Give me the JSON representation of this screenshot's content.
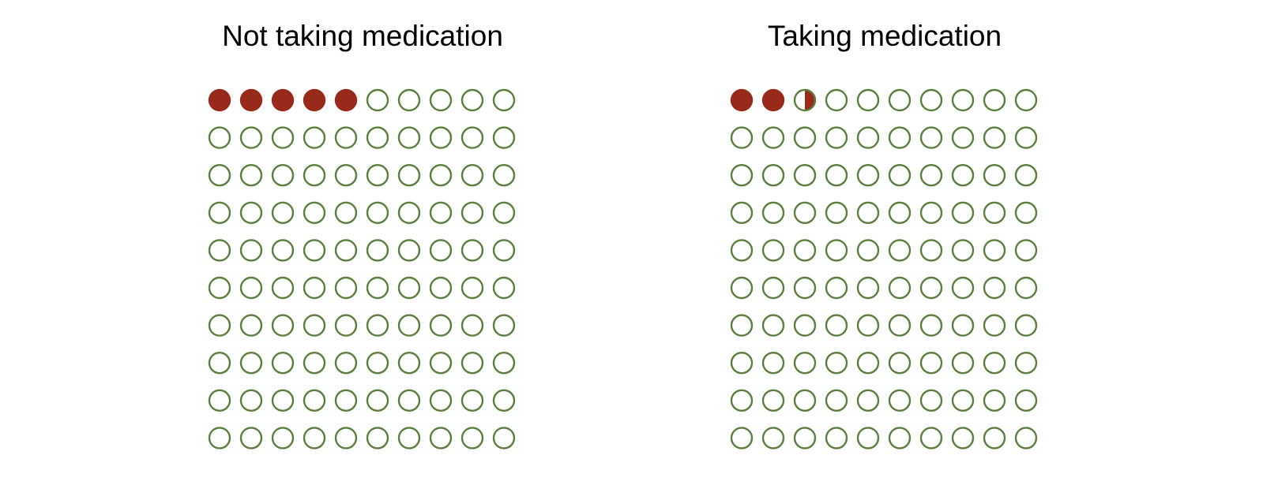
{
  "chart_data": [
    {
      "type": "icon-array",
      "title": "Not taking medication",
      "total": 100,
      "columns": 10,
      "rows": 10,
      "affected": 5,
      "affected_color": "#992a1b",
      "unaffected_outline_color": "#5a7f3e"
    },
    {
      "type": "icon-array",
      "title": "Taking medication",
      "total": 100,
      "columns": 10,
      "rows": 10,
      "affected": 2.5,
      "affected_color": "#992a1b",
      "unaffected_outline_color": "#5a7f3e"
    }
  ]
}
